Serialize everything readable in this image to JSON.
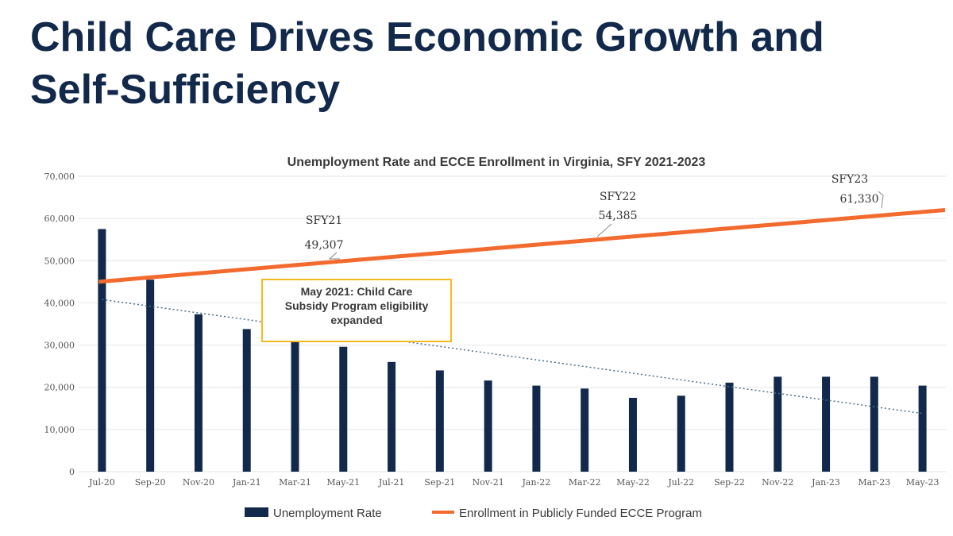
{
  "slide": {
    "title_line1": "Child Care Drives Economic Growth and",
    "title_line2": "Self-Sufficiency"
  },
  "chart_data": {
    "type": "bar",
    "title": "Unemployment Rate and ECCE Enrollment in Virginia, SFY 2021-2023",
    "xlabel": "",
    "ylabel": "",
    "ylim": [
      0,
      70000
    ],
    "yticks": [
      "0",
      "10,000",
      "20,000",
      "30,000",
      "40,000",
      "50,000",
      "60,000",
      "70,000"
    ],
    "categories": [
      "Jul-20",
      "Sep-20",
      "Nov-20",
      "Jan-21",
      "Mar-21",
      "May-21",
      "Jul-21",
      "Sep-21",
      "Nov-21",
      "Jan-22",
      "Mar-22",
      "May-22",
      "Jul-22",
      "Sep-22",
      "Nov-22",
      "Jan-23",
      "Mar-23",
      "May-23"
    ],
    "series": [
      {
        "name": "Unemployment Rate",
        "kind": "bar",
        "color": "#13294b",
        "values": [
          57500,
          45500,
          37300,
          33800,
          32300,
          29600,
          26000,
          24000,
          21600,
          20400,
          19700,
          17500,
          18000,
          21100,
          22500,
          22500,
          22500,
          20400
        ]
      },
      {
        "name": "Enrollment in Publicly Funded ECCE Program",
        "kind": "line",
        "color": "#f26a2e",
        "points": [
          {
            "x": "Jul-20",
            "y": 45000
          },
          {
            "x": "May-23",
            "y": 62000
          }
        ]
      },
      {
        "name": "",
        "kind": "trendline",
        "color": "#4a6f8a",
        "points": [
          {
            "x": "Jul-20",
            "y": 40800
          },
          {
            "x": "May-23",
            "y": 13800
          }
        ]
      }
    ],
    "annotations": [
      {
        "label": "SFY21",
        "value": "49,307",
        "category": "Mar-21",
        "y": 49307
      },
      {
        "label": "SFY22",
        "value": "54,385",
        "category": "Mar-22",
        "y": 54385
      },
      {
        "label": "SFY23",
        "value": "61,330",
        "category": "Mar-23",
        "y": 61330
      }
    ],
    "callout": {
      "lines": [
        "May 2021: Child Care",
        "Subsidy Program eligibility",
        "expanded"
      ],
      "border_color": "#f5b921"
    },
    "grid": true,
    "legend_position": "bottom"
  }
}
